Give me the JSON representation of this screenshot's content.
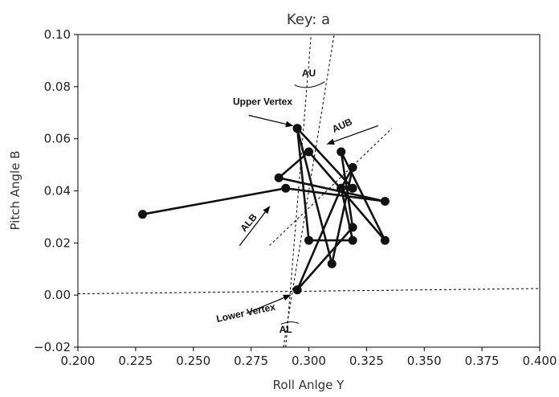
{
  "chart_data": {
    "type": "line",
    "title": "Key: a",
    "xlabel": "Roll Anlge Y",
    "ylabel": "Pitch Angle B",
    "xlim": [
      0.2,
      0.4
    ],
    "ylim": [
      -0.02,
      0.1
    ],
    "xticks": [
      "0.200",
      "0.225",
      "0.250",
      "0.275",
      "0.300",
      "0.325",
      "0.350",
      "0.375",
      "0.400"
    ],
    "yticks": [
      "−0.02",
      "0.00",
      "0.02",
      "0.04",
      "0.06",
      "0.08",
      "0.10"
    ],
    "grid": false,
    "legend": "none",
    "color": "#111111",
    "series": [
      {
        "x": [
          0.228,
          0.29,
          0.333,
          0.287,
          0.3,
          0.333,
          0.314,
          0.319,
          0.295,
          0.314,
          0.319,
          0.31,
          0.295,
          0.319,
          0.314,
          0.319,
          0.3,
          0.295
        ],
        "y": [
          0.031,
          0.041,
          0.036,
          0.045,
          0.055,
          0.021,
          0.055,
          0.026,
          0.002,
          0.041,
          0.049,
          0.012,
          0.064,
          0.041,
          0.041,
          0.021,
          0.021,
          0.064
        ]
      }
    ],
    "reference_lines": [
      {
        "style": "dashed",
        "x": [
          0.2,
          0.4
        ],
        "y": [
          0.0005,
          0.0025
        ]
      },
      {
        "style": "dashed",
        "x": [
          0.29,
          0.301
        ],
        "y": [
          -0.02,
          0.1
        ]
      },
      {
        "style": "dashed",
        "x": [
          0.289,
          0.311
        ],
        "y": [
          -0.02,
          0.1
        ]
      },
      {
        "style": "dashed",
        "x": [
          0.283,
          0.336
        ],
        "y": [
          0.019,
          0.064
        ]
      }
    ],
    "annotations": [
      {
        "text": "Upper Vertex",
        "x": 0.28,
        "y": 0.073,
        "arrow_from": [
          0.274,
          0.069
        ],
        "arrow_to": [
          0.293,
          0.065
        ]
      },
      {
        "text": "AUB",
        "x": 0.315,
        "y": 0.064,
        "arrow_from": [
          0.33,
          0.065
        ],
        "arrow_to": [
          0.308,
          0.058
        ]
      },
      {
        "text": "ALB",
        "x": 0.275,
        "y": 0.027,
        "arrow_from": [
          0.27,
          0.019
        ],
        "arrow_to": [
          0.283,
          0.034
        ]
      },
      {
        "text": "Lower Vertex",
        "x": 0.273,
        "y": -0.008,
        "arrow_from": [
          0.273,
          -0.007
        ],
        "arrow_to": [
          0.292,
          0.0
        ]
      },
      {
        "text": "AU",
        "x": 0.3,
        "y": 0.084
      },
      {
        "text": "AL",
        "x": 0.29,
        "y": -0.0145
      }
    ]
  }
}
